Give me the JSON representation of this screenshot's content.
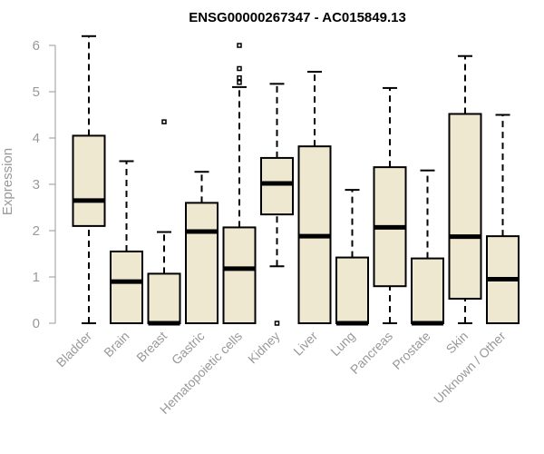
{
  "chart_data": {
    "type": "boxplot",
    "title": "ENSG00000267347 - AC015849.13",
    "ylabel": "Expression",
    "xlabel": "",
    "ylim": [
      0,
      6.2
    ],
    "yticks": [
      0,
      1,
      2,
      3,
      4,
      5,
      6
    ],
    "grid": false,
    "colors": {
      "box_fill": "#efe8d0",
      "box_stroke": "#000000",
      "axis": "#999999"
    },
    "categories": [
      "Bladder",
      "Brain",
      "Breast",
      "Gastric",
      "Hematopoietic cells",
      "Kidney",
      "Liver",
      "Lung",
      "Pancreas",
      "Prostate",
      "Skin",
      "Unknown / Other"
    ],
    "boxes": [
      {
        "min": 0.0,
        "q1": 2.1,
        "median": 2.65,
        "q3": 4.05,
        "max": 6.2,
        "outliers": []
      },
      {
        "min": 0.0,
        "q1": 0.0,
        "median": 0.9,
        "q3": 1.55,
        "max": 3.5,
        "outliers": []
      },
      {
        "min": 0.0,
        "q1": 0.0,
        "median": 0.0,
        "q3": 1.07,
        "max": 1.97,
        "outliers": [
          4.35
        ]
      },
      {
        "min": 0.0,
        "q1": 0.0,
        "median": 1.98,
        "q3": 2.6,
        "max": 3.27,
        "outliers": []
      },
      {
        "min": 0.0,
        "q1": 0.0,
        "median": 1.18,
        "q3": 2.07,
        "max": 5.1,
        "outliers": [
          5.2,
          5.3,
          5.5,
          6.0
        ]
      },
      {
        "min": 1.23,
        "q1": 2.35,
        "median": 3.02,
        "q3": 3.57,
        "max": 5.17,
        "outliers": [
          0.0
        ]
      },
      {
        "min": 0.0,
        "q1": 0.0,
        "median": 1.88,
        "q3": 3.82,
        "max": 5.43,
        "outliers": []
      },
      {
        "min": 0.0,
        "q1": 0.0,
        "median": 0.0,
        "q3": 1.42,
        "max": 2.88,
        "outliers": []
      },
      {
        "min": 0.0,
        "q1": 0.8,
        "median": 2.07,
        "q3": 3.37,
        "max": 5.08,
        "outliers": []
      },
      {
        "min": 0.0,
        "q1": 0.0,
        "median": 0.0,
        "q3": 1.4,
        "max": 3.3,
        "outliers": []
      },
      {
        "min": 0.0,
        "q1": 0.53,
        "median": 1.87,
        "q3": 4.52,
        "max": 5.77,
        "outliers": []
      },
      {
        "min": 0.0,
        "q1": 0.0,
        "median": 0.95,
        "q3": 1.88,
        "max": 4.5,
        "outliers": []
      }
    ]
  }
}
